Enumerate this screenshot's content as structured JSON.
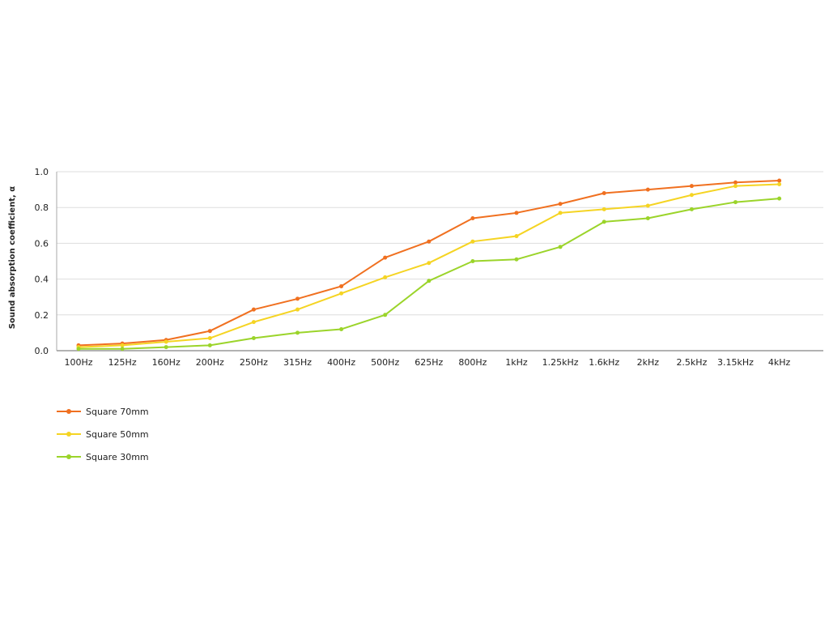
{
  "chart_data": {
    "type": "line",
    "ylabel": "Sound absorption coefficient, α",
    "xlabel": "",
    "ylim": [
      0,
      1.0
    ],
    "yticks": [
      "0.0",
      "0.2",
      "0.4",
      "0.6",
      "0.8",
      "1.0"
    ],
    "grid": true,
    "legend_position": "bottom-left",
    "categories": [
      "100Hz",
      "125Hz",
      "160Hz",
      "200Hz",
      "250Hz",
      "315Hz",
      "400Hz",
      "500Hz",
      "625Hz",
      "800Hz",
      "1kHz",
      "1.25kHz",
      "1.6kHz",
      "2kHz",
      "2.5kHz",
      "3.15kHz",
      "4kHz"
    ],
    "series": [
      {
        "name": "Square 70mm",
        "color": "#f07020",
        "values": [
          0.03,
          0.04,
          0.06,
          0.11,
          0.23,
          0.29,
          0.36,
          0.52,
          0.61,
          0.74,
          0.77,
          0.82,
          0.88,
          0.9,
          0.92,
          0.94,
          0.95
        ]
      },
      {
        "name": "Square 50mm",
        "color": "#f5d423",
        "values": [
          0.02,
          0.03,
          0.05,
          0.07,
          0.16,
          0.23,
          0.32,
          0.41,
          0.49,
          0.61,
          0.64,
          0.77,
          0.79,
          0.81,
          0.87,
          0.92,
          0.93
        ]
      },
      {
        "name": "Square 30mm",
        "color": "#9bd42a",
        "values": [
          0.01,
          0.01,
          0.02,
          0.03,
          0.07,
          0.1,
          0.12,
          0.2,
          0.39,
          0.5,
          0.51,
          0.58,
          0.72,
          0.74,
          0.79,
          0.83,
          0.85
        ]
      }
    ]
  }
}
